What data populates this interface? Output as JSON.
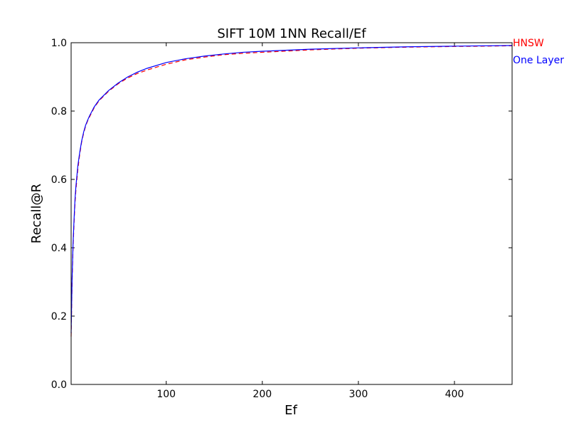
{
  "chart_data": {
    "type": "line",
    "title": "SIFT 10M 1NN Recall/Ef",
    "xlabel": "Ef",
    "ylabel": "Recall@R",
    "xlim": [
      1,
      460
    ],
    "ylim": [
      0.0,
      1.0
    ],
    "x_ticks": [
      100,
      200,
      300,
      400
    ],
    "y_ticks": [
      0.0,
      0.2,
      0.4,
      0.6,
      0.8,
      1.0
    ],
    "x_tick_labels": [
      "100",
      "200",
      "300",
      "400"
    ],
    "y_tick_labels": [
      "0.0",
      "0.2",
      "0.4",
      "0.6",
      "0.8",
      "1.0"
    ],
    "grid": false,
    "legend_position": "right-outside",
    "series": [
      {
        "name": "HNSW",
        "color": "#ff0000",
        "style": "dashed",
        "x": [
          1,
          2,
          3,
          4,
          5,
          6,
          8,
          10,
          12,
          14,
          16,
          18,
          20,
          25,
          30,
          40,
          50,
          60,
          70,
          80,
          100,
          120,
          140,
          160,
          180,
          200,
          250,
          300,
          350,
          400,
          460
        ],
        "y": [
          0.14,
          0.3,
          0.4,
          0.47,
          0.53,
          0.57,
          0.63,
          0.675,
          0.71,
          0.735,
          0.755,
          0.77,
          0.782,
          0.81,
          0.83,
          0.858,
          0.88,
          0.897,
          0.91,
          0.92,
          0.937,
          0.95,
          0.958,
          0.965,
          0.969,
          0.972,
          0.979,
          0.984,
          0.987,
          0.989,
          0.991
        ]
      },
      {
        "name": "One Layer",
        "color": "#0000ff",
        "style": "solid",
        "x": [
          1,
          2,
          3,
          4,
          5,
          6,
          8,
          10,
          12,
          14,
          16,
          18,
          20,
          25,
          30,
          40,
          50,
          60,
          70,
          80,
          100,
          120,
          140,
          160,
          180,
          200,
          250,
          300,
          350,
          400,
          460
        ],
        "y": [
          0.15,
          0.31,
          0.41,
          0.48,
          0.54,
          0.58,
          0.64,
          0.68,
          0.713,
          0.738,
          0.758,
          0.772,
          0.785,
          0.812,
          0.832,
          0.86,
          0.882,
          0.9,
          0.914,
          0.925,
          0.942,
          0.953,
          0.961,
          0.967,
          0.972,
          0.975,
          0.981,
          0.985,
          0.988,
          0.99,
          0.992
        ]
      }
    ]
  }
}
